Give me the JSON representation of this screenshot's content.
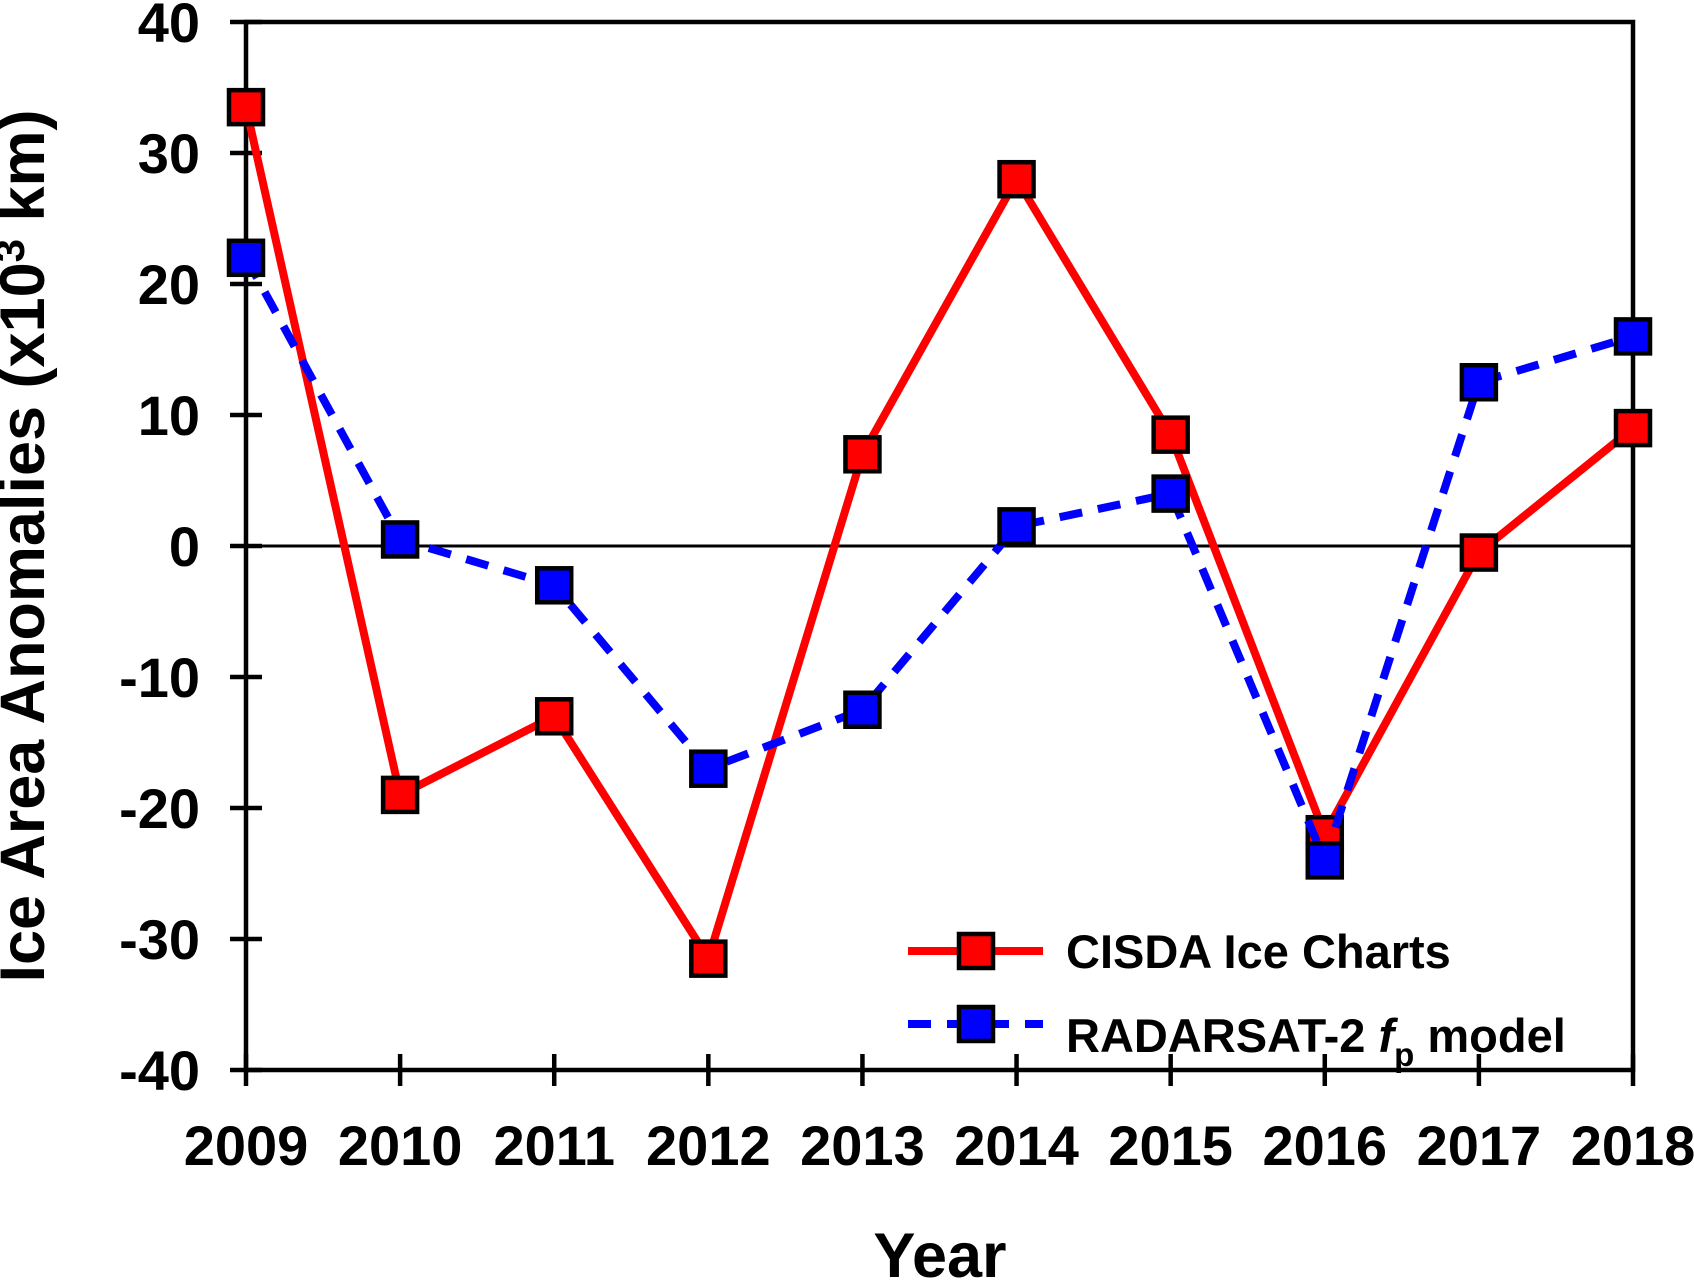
{
  "chart_data": {
    "type": "line",
    "title": "",
    "xlabel": "Year",
    "ylabel": "Ice Area Anomalies (x10^3 km)",
    "ylabel_parts": {
      "pre": "Ice Area Anomalies (x10",
      "sup": "3",
      "post": " km)"
    },
    "x_categories": [
      "2009",
      "2010",
      "2011",
      "2012",
      "2013",
      "2014",
      "2015",
      "2016",
      "2017",
      "2018"
    ],
    "y_ticks": [
      "40",
      "30",
      "20",
      "10",
      "0",
      "-10",
      "-20",
      "-30",
      "-40"
    ],
    "ylim": [
      -40,
      40
    ],
    "zero_line": true,
    "grid": false,
    "legend_position": "inside lower right",
    "axis_color": "#000000",
    "series": [
      {
        "name": "CISDA Ice Charts",
        "color": "#ff0000",
        "line_style": "solid",
        "marker": "square",
        "marker_border_color": "#000000",
        "values": [
          33.5,
          -19,
          -13,
          -31.5,
          7,
          28,
          8.5,
          -22,
          -0.5,
          9
        ]
      },
      {
        "name": "RADARSAT-2 fp model",
        "label_parts": {
          "pre": "RADARSAT-2 ",
          "italic": "f",
          "sub": "p",
          "post": " model"
        },
        "color": "#0000ff",
        "line_style": "dashed",
        "marker": "square",
        "marker_border_color": "#000000",
        "values": [
          22,
          0.5,
          -3,
          -17,
          -12.5,
          1.5,
          4,
          -24,
          12.5,
          16
        ]
      }
    ]
  }
}
